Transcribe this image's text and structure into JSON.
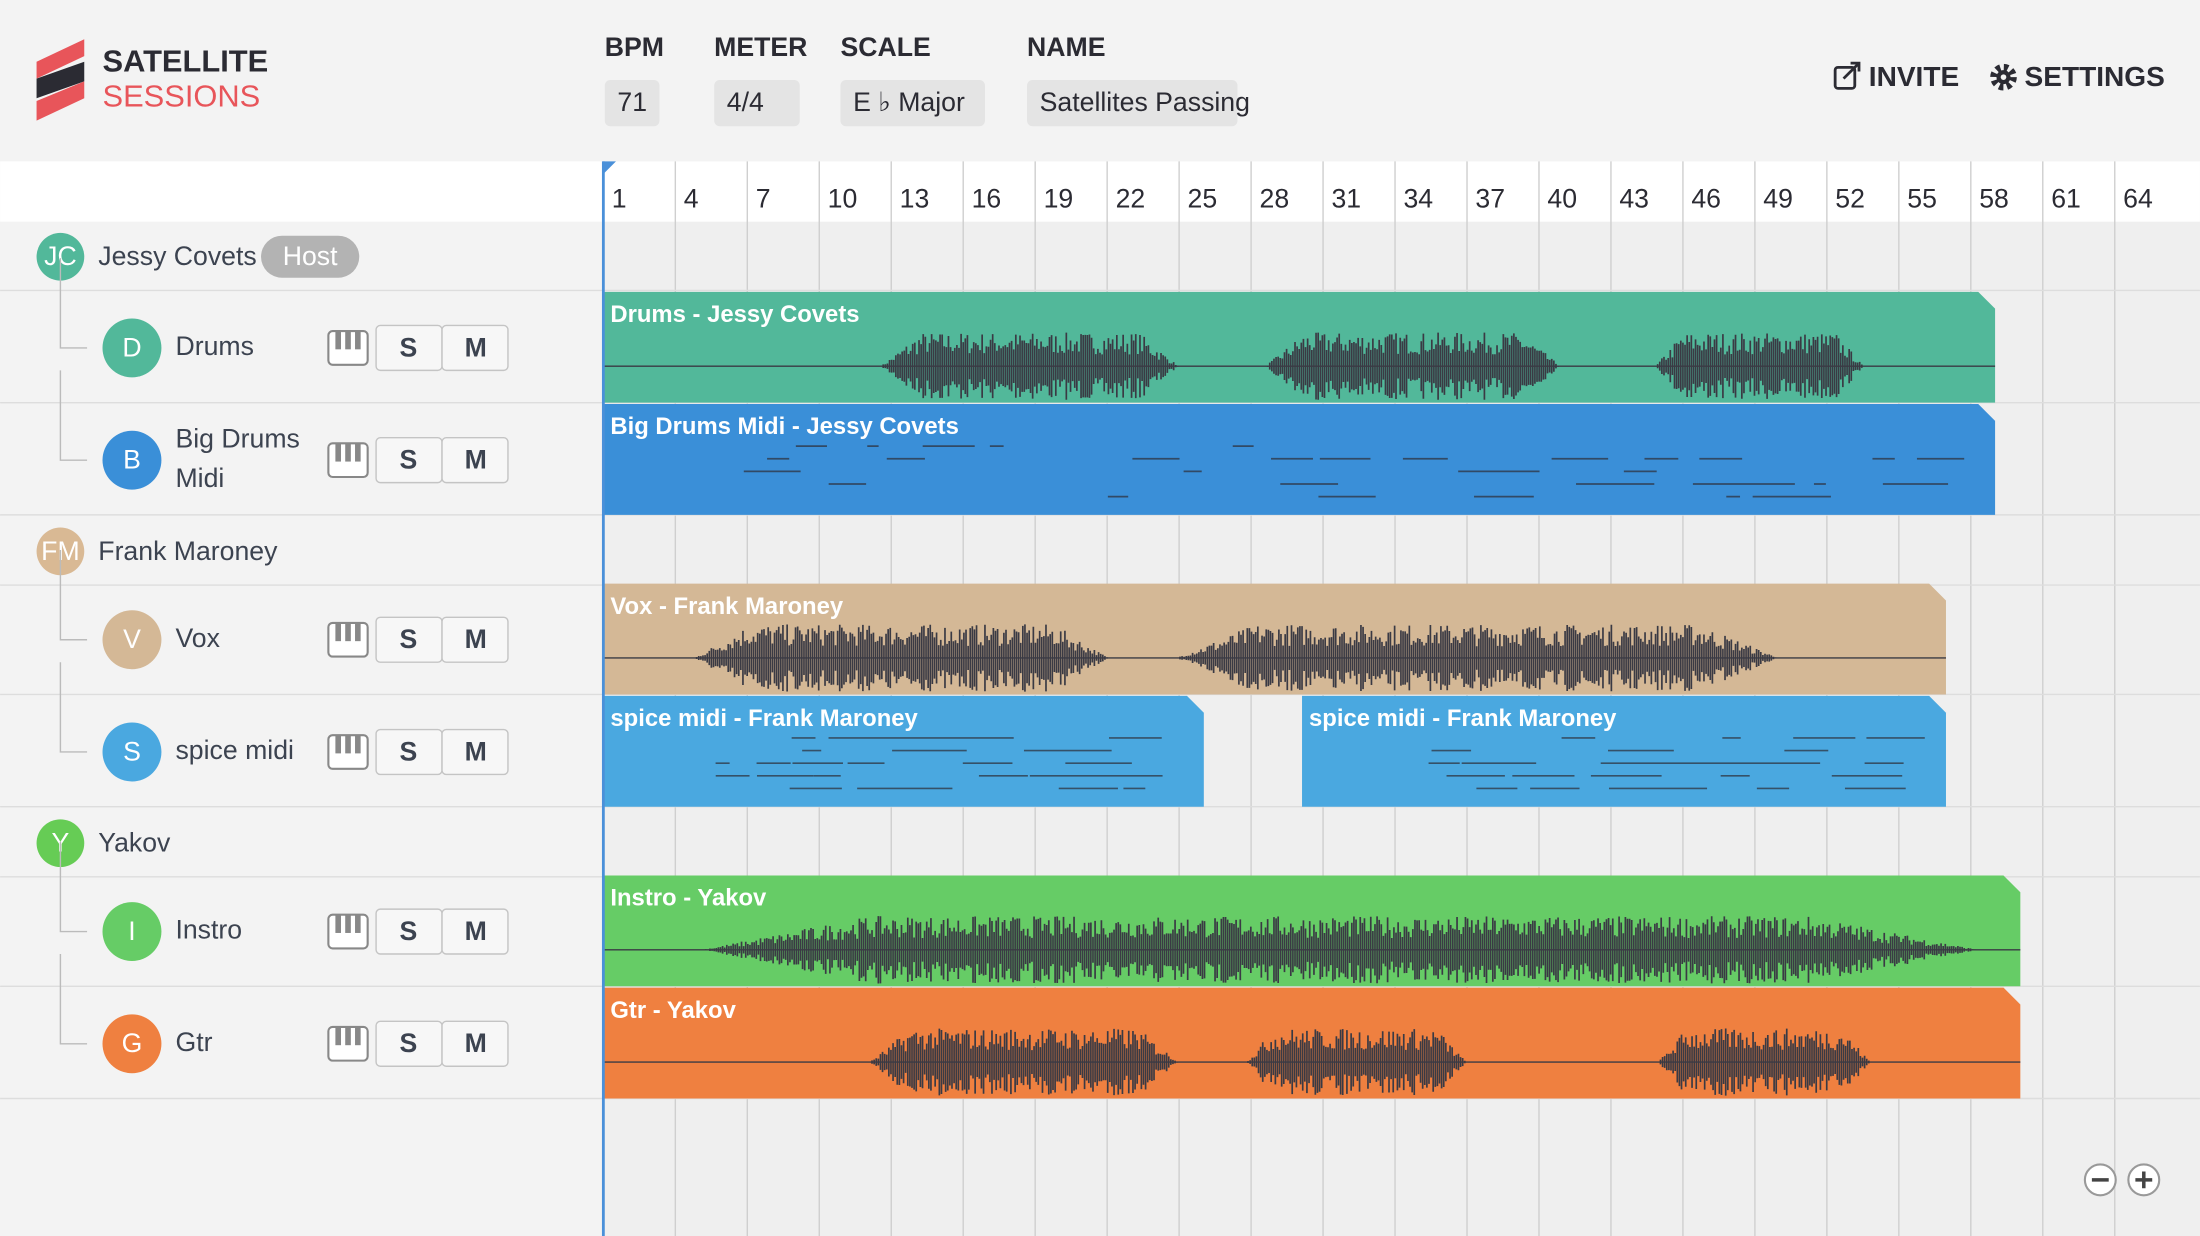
{
  "header": {
    "brand": [
      "SATELLITE",
      "SESSIONS"
    ],
    "fields": [
      {
        "label": "BPM",
        "value": "71"
      },
      {
        "label": "METER",
        "value": "4/4"
      },
      {
        "label": "SCALE",
        "value": "E ♭ Major"
      },
      {
        "label": "NAME",
        "value": "Satellites Passing"
      }
    ],
    "actions": [
      "INVITE",
      "SETTINGS"
    ]
  },
  "timeline": {
    "bars": [
      "1",
      "4",
      "7",
      "10",
      "13",
      "16",
      "19",
      "22",
      "25",
      "28",
      "31",
      "34",
      "37",
      "40",
      "43",
      "46",
      "49",
      "52",
      "55",
      "58",
      "61",
      "64"
    ]
  },
  "users": [
    {
      "initials": "JC",
      "name": "Jessy Covets",
      "badge": "Host",
      "tracks": [
        {
          "initial": "D",
          "name": "Drums",
          "solo": "S",
          "mute": "M",
          "clips": [
            "Drums - Jessy Covets"
          ]
        },
        {
          "initial": "B",
          "name": "Big Drums Midi",
          "solo": "S",
          "mute": "M",
          "clips": [
            "Big Drums Midi - Jessy Covets"
          ]
        }
      ]
    },
    {
      "initials": "FM",
      "name": "Frank Maroney",
      "tracks": [
        {
          "initial": "V",
          "name": "Vox",
          "solo": "S",
          "mute": "M",
          "clips": [
            "Vox - Frank Maroney"
          ]
        },
        {
          "initial": "S",
          "name": "spice midi",
          "solo": "S",
          "mute": "M",
          "clips": [
            "spice midi - Frank Maroney",
            "spice midi - Frank Maroney"
          ]
        }
      ]
    },
    {
      "initials": "Y",
      "name": "Yakov",
      "tracks": [
        {
          "initial": "I",
          "name": "Instro",
          "solo": "S",
          "mute": "M",
          "clips": [
            "Instro - Yakov"
          ]
        },
        {
          "initial": "G",
          "name": "Gtr",
          "solo": "S",
          "mute": "M",
          "clips": [
            "Gtr - Yakov"
          ]
        }
      ]
    }
  ]
}
